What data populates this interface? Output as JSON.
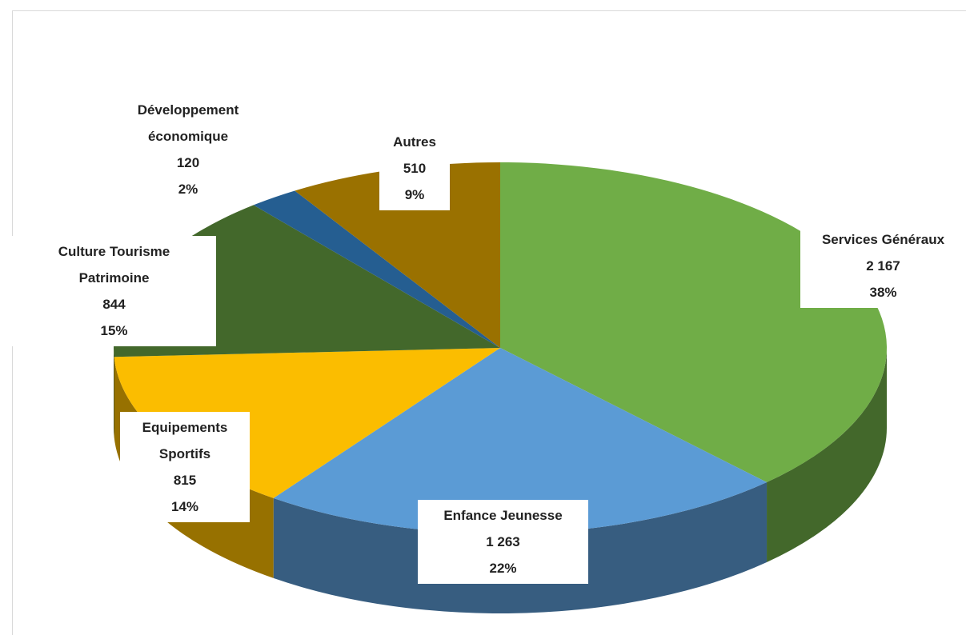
{
  "chart_data": {
    "type": "pie",
    "categories": [
      "Services Généraux",
      "Enfance Jeunesse",
      "Equipements Sportifs",
      "Culture Tourisme Patrimoine",
      "Développement économique",
      "Autres"
    ],
    "values": [
      2167,
      1263,
      815,
      844,
      120,
      510
    ],
    "value_labels": [
      "2 167",
      "1 263",
      "815",
      "844",
      "120",
      "510"
    ],
    "percent_labels": [
      "38%",
      "22%",
      "14%",
      "15%",
      "2%",
      "9%"
    ],
    "colors": [
      "#70ad47",
      "#5b9bd5",
      "#fbbd00",
      "#43682b",
      "#255e91",
      "#9a7100"
    ],
    "three_d": true
  }
}
